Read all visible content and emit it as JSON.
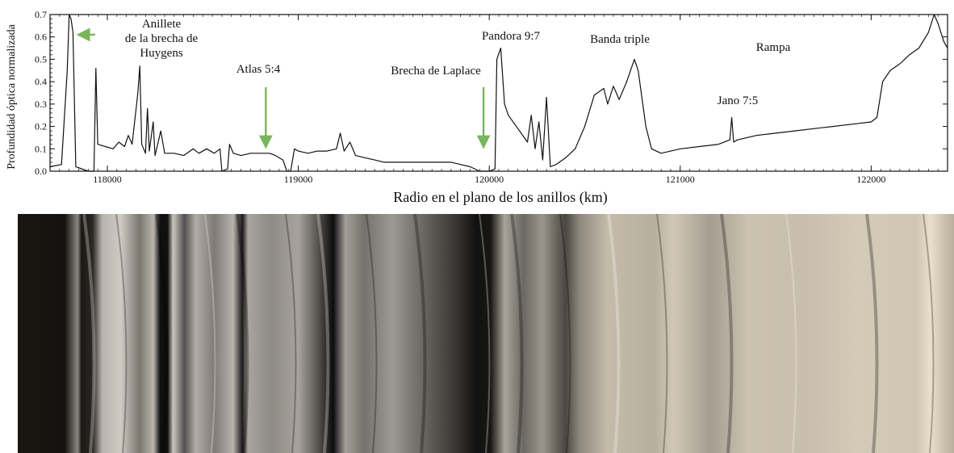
{
  "chart_data": {
    "type": "line",
    "ylabel": "Profundidad óptica normalizada",
    "xlabel": "Radio en el plano de los anillos (km)",
    "xlim": [
      117700,
      122400
    ],
    "ylim": [
      0.0,
      0.7
    ],
    "x_ticks": [
      118000,
      119000,
      120000,
      121000,
      122000
    ],
    "x_tick_labels": [
      "118000",
      "119000",
      "120000",
      "121000",
      "122000"
    ],
    "y_ticks": [
      0.0,
      0.1,
      0.2,
      0.3,
      0.4,
      0.5,
      0.6,
      0.7
    ],
    "y_tick_labels": [
      "0.0",
      "0.1",
      "0.2",
      "0.3",
      "0.4",
      "0.5",
      "0.6",
      "0.7"
    ],
    "series": [
      {
        "color": "#111111",
        "points": [
          [
            117700,
            0.02
          ],
          [
            117760,
            0.03
          ],
          [
            117790,
            0.45
          ],
          [
            117800,
            0.7
          ],
          [
            117810,
            0.68
          ],
          [
            117820,
            0.62
          ],
          [
            117835,
            0.02
          ],
          [
            117900,
            0.0
          ],
          [
            117930,
            0.0
          ],
          [
            117940,
            0.46
          ],
          [
            117950,
            0.12
          ],
          [
            117990,
            0.11
          ],
          [
            118030,
            0.1
          ],
          [
            118060,
            0.13
          ],
          [
            118090,
            0.11
          ],
          [
            118110,
            0.16
          ],
          [
            118130,
            0.12
          ],
          [
            118160,
            0.35
          ],
          [
            118170,
            0.47
          ],
          [
            118180,
            0.12
          ],
          [
            118200,
            0.08
          ],
          [
            118210,
            0.28
          ],
          [
            118220,
            0.09
          ],
          [
            118240,
            0.22
          ],
          [
            118250,
            0.07
          ],
          [
            118280,
            0.18
          ],
          [
            118300,
            0.08
          ],
          [
            118350,
            0.08
          ],
          [
            118400,
            0.07
          ],
          [
            118450,
            0.1
          ],
          [
            118480,
            0.08
          ],
          [
            118520,
            0.1
          ],
          [
            118560,
            0.08
          ],
          [
            118590,
            0.1
          ],
          [
            118600,
            0.0
          ],
          [
            118630,
            0.01
          ],
          [
            118640,
            0.12
          ],
          [
            118660,
            0.08
          ],
          [
            118700,
            0.07
          ],
          [
            118750,
            0.08
          ],
          [
            118800,
            0.08
          ],
          [
            118850,
            0.08
          ],
          [
            118880,
            0.07
          ],
          [
            118920,
            0.05
          ],
          [
            118940,
            0.0
          ],
          [
            118960,
            0.0
          ],
          [
            118980,
            0.1
          ],
          [
            119000,
            0.09
          ],
          [
            119050,
            0.08
          ],
          [
            119100,
            0.09
          ],
          [
            119150,
            0.09
          ],
          [
            119200,
            0.1
          ],
          [
            119220,
            0.17
          ],
          [
            119240,
            0.09
          ],
          [
            119270,
            0.13
          ],
          [
            119300,
            0.07
          ],
          [
            119350,
            0.06
          ],
          [
            119400,
            0.05
          ],
          [
            119450,
            0.04
          ],
          [
            119500,
            0.04
          ],
          [
            119600,
            0.04
          ],
          [
            119700,
            0.04
          ],
          [
            119800,
            0.04
          ],
          [
            119850,
            0.03
          ],
          [
            119900,
            0.02
          ],
          [
            119950,
            0.0
          ],
          [
            120000,
            0.0
          ],
          [
            120030,
            0.01
          ],
          [
            120040,
            0.5
          ],
          [
            120060,
            0.55
          ],
          [
            120080,
            0.3
          ],
          [
            120100,
            0.25
          ],
          [
            120150,
            0.19
          ],
          [
            120200,
            0.13
          ],
          [
            120220,
            0.25
          ],
          [
            120240,
            0.1
          ],
          [
            120260,
            0.22
          ],
          [
            120280,
            0.05
          ],
          [
            120300,
            0.33
          ],
          [
            120320,
            0.02
          ],
          [
            120350,
            0.03
          ],
          [
            120400,
            0.06
          ],
          [
            120450,
            0.1
          ],
          [
            120500,
            0.2
          ],
          [
            120550,
            0.34
          ],
          [
            120600,
            0.37
          ],
          [
            120620,
            0.3
          ],
          [
            120650,
            0.38
          ],
          [
            120680,
            0.32
          ],
          [
            120720,
            0.4
          ],
          [
            120760,
            0.5
          ],
          [
            120780,
            0.45
          ],
          [
            120820,
            0.2
          ],
          [
            120850,
            0.1
          ],
          [
            120900,
            0.08
          ],
          [
            121000,
            0.1
          ],
          [
            121100,
            0.11
          ],
          [
            121200,
            0.12
          ],
          [
            121260,
            0.14
          ],
          [
            121270,
            0.24
          ],
          [
            121280,
            0.13
          ],
          [
            121300,
            0.14
          ],
          [
            121400,
            0.16
          ],
          [
            121500,
            0.17
          ],
          [
            121600,
            0.18
          ],
          [
            121700,
            0.19
          ],
          [
            121800,
            0.2
          ],
          [
            121900,
            0.21
          ],
          [
            122000,
            0.22
          ],
          [
            122030,
            0.24
          ],
          [
            122060,
            0.4
          ],
          [
            122100,
            0.45
          ],
          [
            122150,
            0.48
          ],
          [
            122200,
            0.52
          ],
          [
            122250,
            0.55
          ],
          [
            122300,
            0.62
          ],
          [
            122330,
            0.7
          ],
          [
            122350,
            0.66
          ],
          [
            122380,
            0.58
          ],
          [
            122400,
            0.55
          ]
        ]
      }
    ],
    "annotations": [
      {
        "id": "anillete-huygens",
        "lines": [
          "Anillete",
          "de la brecha de",
          "Huygens"
        ],
        "arrow": "left",
        "x": 117820,
        "y": 0.61
      },
      {
        "id": "atlas",
        "lines": [
          "Atlas 5:4"
        ],
        "arrow": "down",
        "x": 118830,
        "y": 0.12
      },
      {
        "id": "laplace",
        "lines": [
          "Brecha de Laplace"
        ],
        "arrow": "down",
        "x": 119970,
        "y": 0.12
      },
      {
        "id": "pandora",
        "lines": [
          "Pandora 9:7"
        ],
        "arrow": null,
        "x": 120050,
        "y": 0.6
      },
      {
        "id": "banda-triple",
        "lines": [
          "Banda triple"
        ],
        "arrow": null,
        "x": 120600,
        "y": 0.58
      },
      {
        "id": "rampa",
        "lines": [
          "Rampa"
        ],
        "arrow": null,
        "x": 121500,
        "y": 0.55
      },
      {
        "id": "jano",
        "lines": [
          "Jano 7:5"
        ],
        "arrow": null,
        "x": 121270,
        "y": 0.31
      }
    ],
    "arrow_color": "#7ab45c"
  }
}
